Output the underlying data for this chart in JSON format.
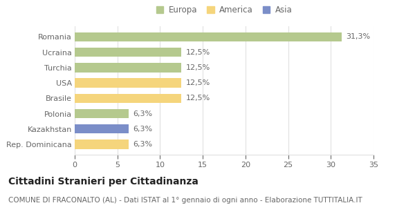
{
  "categories": [
    "Romania",
    "Ucraina",
    "Turchia",
    "USA",
    "Brasile",
    "Polonia",
    "Kazakhstan",
    "Rep. Dominicana"
  ],
  "values": [
    31.3,
    12.5,
    12.5,
    12.5,
    12.5,
    6.3,
    6.3,
    6.3
  ],
  "labels": [
    "31,3%",
    "12,5%",
    "12,5%",
    "12,5%",
    "12,5%",
    "6,3%",
    "6,3%",
    "6,3%"
  ],
  "colors": [
    "#b5c98e",
    "#b5c98e",
    "#b5c98e",
    "#f5d57c",
    "#f5d57c",
    "#b5c98e",
    "#7b8ec8",
    "#f5d57c"
  ],
  "legend_labels": [
    "Europa",
    "America",
    "Asia"
  ],
  "legend_colors": [
    "#b5c98e",
    "#f5d57c",
    "#7b8ec8"
  ],
  "xlim": [
    0,
    35
  ],
  "xticks": [
    0,
    5,
    10,
    15,
    20,
    25,
    30,
    35
  ],
  "title": "Cittadini Stranieri per Cittadinanza",
  "subtitle": "COMUNE DI FRACONALTO (AL) - Dati ISTAT al 1° gennaio di ogni anno - Elaborazione TUTTITALIA.IT",
  "background_color": "#ffffff",
  "bar_height": 0.6,
  "title_fontsize": 10,
  "subtitle_fontsize": 7.5,
  "label_fontsize": 8,
  "tick_fontsize": 8,
  "legend_fontsize": 8.5,
  "grid_color": "#e0e0e0",
  "text_color": "#666666",
  "title_color": "#222222"
}
